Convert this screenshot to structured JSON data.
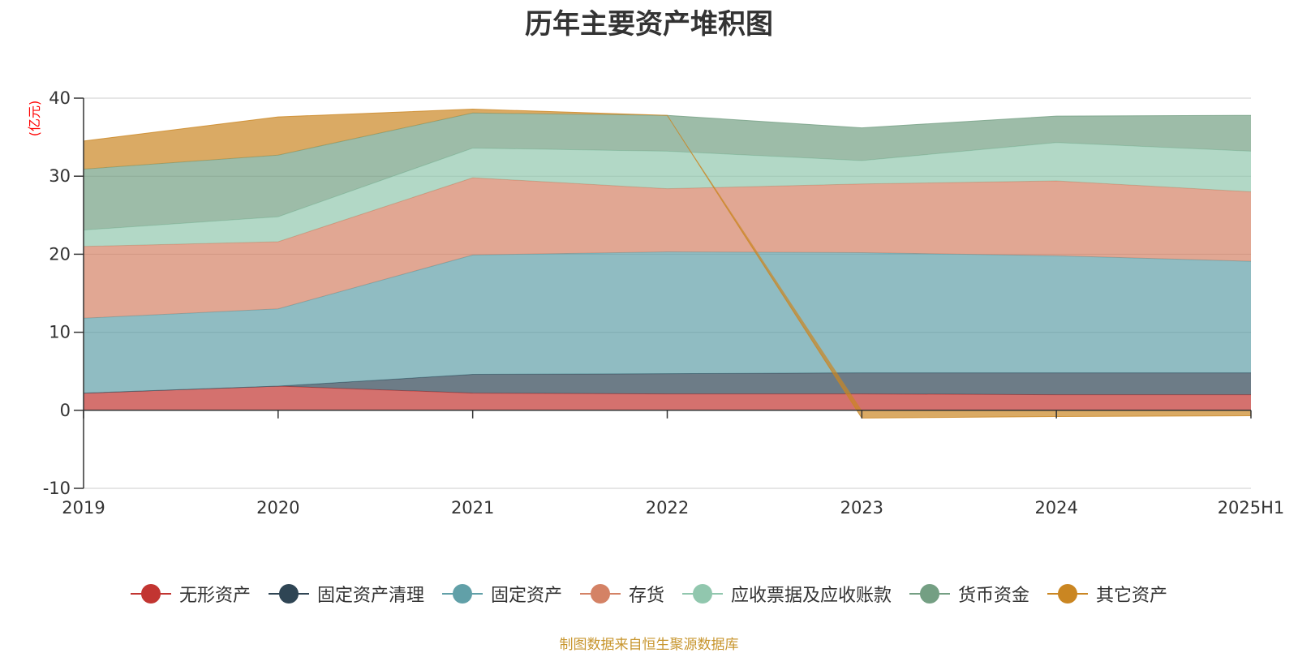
{
  "chart_data": {
    "type": "area",
    "title": "历年主要资产堆积图",
    "ylabel": "(亿元)",
    "xlabel": "",
    "categories": [
      "2019",
      "2020",
      "2021",
      "2022",
      "2023",
      "2024",
      "2025H1"
    ],
    "ylim": [
      -10,
      40
    ],
    "yticks": [
      -10,
      0,
      10,
      20,
      30,
      40
    ],
    "grid": true,
    "legend_position": "bottom",
    "series": [
      {
        "name": "无形资产",
        "color": "#c23531",
        "values": [
          2.2,
          3.1,
          2.2,
          2.1,
          2.1,
          2.0,
          2.0
        ]
      },
      {
        "name": "固定资产清理",
        "color": "#2f4554",
        "values": [
          0.0,
          0.0,
          2.4,
          2.6,
          2.7,
          2.8,
          2.8
        ]
      },
      {
        "name": "固定资产",
        "color": "#61a0a8",
        "values": [
          9.6,
          9.9,
          15.3,
          15.6,
          15.4,
          15.0,
          14.3
        ]
      },
      {
        "name": "存货",
        "color": "#d48265",
        "values": [
          9.2,
          8.6,
          9.9,
          8.1,
          8.8,
          9.6,
          8.9
        ]
      },
      {
        "name": "应收票据及应收账款",
        "color": "#91c7ae",
        "values": [
          2.1,
          3.2,
          3.8,
          4.8,
          3.0,
          4.9,
          5.2
        ]
      },
      {
        "name": "货币资金",
        "color": "#749f83",
        "values": [
          7.8,
          7.9,
          4.5,
          4.6,
          4.2,
          3.4,
          4.6
        ]
      },
      {
        "name": "其它资产",
        "color": "#ca8622",
        "values": [
          3.6,
          4.9,
          0.5,
          0.0,
          -1.0,
          -0.8,
          -0.7
        ]
      }
    ]
  },
  "source_note": "制图数据来自恒生聚源数据库"
}
